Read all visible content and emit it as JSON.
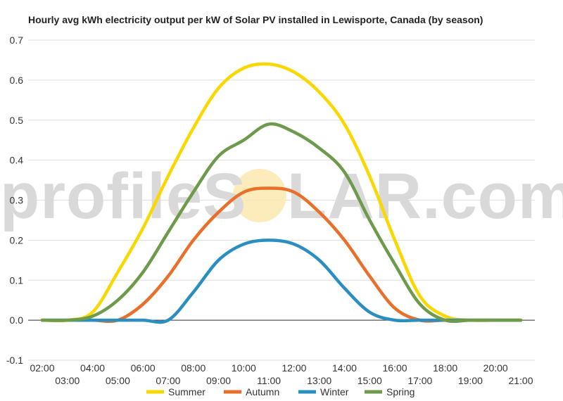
{
  "watermark": {
    "text_left": "profileS",
    "text_right": "LAR.com"
  },
  "chart_data": {
    "type": "line",
    "title": "Hourly avg kWh electricity output per kW of Solar PV installed in Lewisporte, Canada (by season)",
    "xlabel": "",
    "ylabel": "",
    "categories": [
      "02:00",
      "03:00",
      "04:00",
      "05:00",
      "06:00",
      "07:00",
      "08:00",
      "09:00",
      "10:00",
      "11:00",
      "12:00",
      "13:00",
      "14:00",
      "15:00",
      "16:00",
      "17:00",
      "18:00",
      "19:00",
      "20:00",
      "21:00"
    ],
    "ylim": [
      -0.1,
      0.7
    ],
    "yticks": [
      "-0.1",
      "0.0",
      "0.1",
      "0.2",
      "0.3",
      "0.4",
      "0.5",
      "0.6",
      "0.7"
    ],
    "grid": true,
    "legend_position": "bottom",
    "series": [
      {
        "name": "Summer",
        "color": "#f8d800",
        "values": [
          0.0,
          0.0,
          0.02,
          0.12,
          0.23,
          0.36,
          0.48,
          0.58,
          0.63,
          0.64,
          0.62,
          0.57,
          0.49,
          0.36,
          0.2,
          0.06,
          0.01,
          0.0,
          0.0,
          0.0
        ]
      },
      {
        "name": "Autumn",
        "color": "#e8702a",
        "values": [
          0.0,
          0.0,
          0.0,
          0.0,
          0.04,
          0.11,
          0.2,
          0.27,
          0.32,
          0.33,
          0.32,
          0.27,
          0.2,
          0.11,
          0.03,
          0.0,
          0.0,
          0.0,
          0.0,
          0.0
        ]
      },
      {
        "name": "Winter",
        "color": "#2a8fc0",
        "values": [
          0.0,
          0.0,
          0.0,
          0.0,
          0.0,
          0.0,
          0.07,
          0.15,
          0.19,
          0.2,
          0.19,
          0.15,
          0.08,
          0.02,
          0.0,
          0.0,
          0.0,
          0.0,
          0.0,
          0.0
        ]
      },
      {
        "name": "Spring",
        "color": "#6e9a4c",
        "values": [
          0.0,
          0.0,
          0.01,
          0.05,
          0.12,
          0.22,
          0.32,
          0.41,
          0.45,
          0.49,
          0.47,
          0.43,
          0.37,
          0.25,
          0.14,
          0.04,
          0.0,
          0.0,
          0.0,
          0.0
        ]
      }
    ]
  }
}
